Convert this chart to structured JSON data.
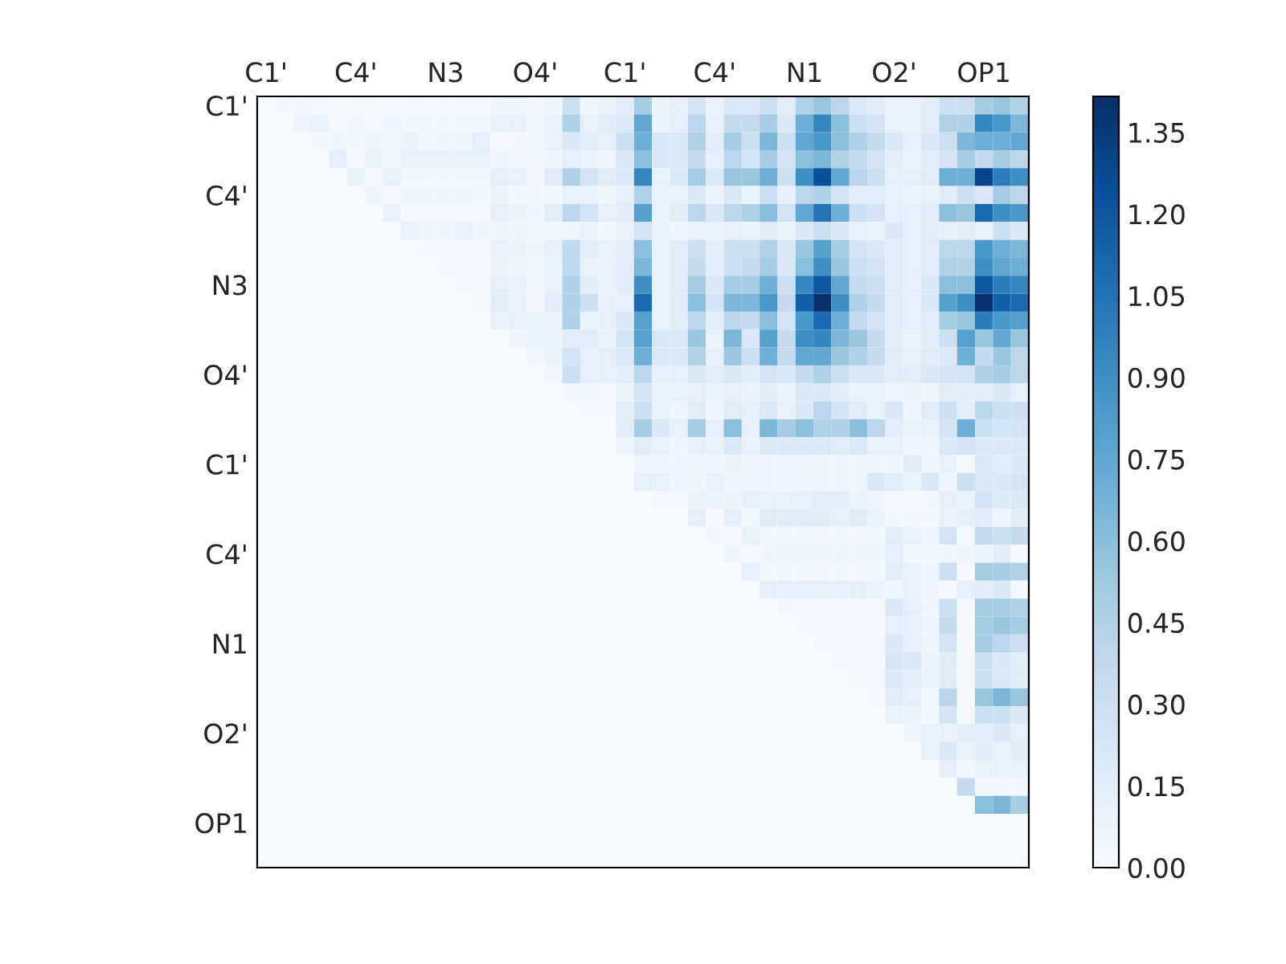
{
  "chart_data": {
    "type": "heatmap",
    "categories": [
      "C1'",
      null,
      null,
      null,
      null,
      "C4'",
      null,
      null,
      null,
      null,
      "N3",
      null,
      null,
      null,
      null,
      "O4'",
      null,
      null,
      null,
      null,
      "C1'",
      null,
      null,
      null,
      null,
      "C4'",
      null,
      null,
      null,
      null,
      "N1",
      null,
      null,
      null,
      null,
      "O2'",
      null,
      null,
      null,
      null,
      "OP1",
      null,
      null
    ],
    "y_categories": [
      "C1'",
      null,
      null,
      null,
      null,
      "C4'",
      null,
      null,
      null,
      null,
      "N3",
      null,
      null,
      null,
      null,
      "O4'",
      null,
      null,
      null,
      null,
      "C1'",
      null,
      null,
      null,
      null,
      "C4'",
      null,
      null,
      null,
      null,
      "N1",
      null,
      null,
      null,
      null,
      "O2'",
      null,
      null,
      null,
      null,
      "OP1",
      null,
      null
    ],
    "cells": [
      [
        0,
        0.03,
        0.03,
        0.02,
        0.02,
        0.02,
        0.02,
        0.02,
        0.02,
        0.02,
        0.02,
        0.02,
        0.02,
        0.05,
        0.05,
        0.03,
        0.05,
        0.3,
        0.05,
        0.08,
        0.15,
        0.5,
        0.08,
        0.12,
        0.25,
        0.1,
        0.2,
        0.2,
        0.3,
        0.15,
        0.45,
        0.55,
        0.4,
        0.2,
        0.15,
        0.1,
        0.1,
        0.15,
        0.3,
        0.3,
        0.5,
        0.55,
        0.45
      ],
      [
        0,
        0,
        0.07,
        0.1,
        0.02,
        0.04,
        0.02,
        0.05,
        0.03,
        0.03,
        0.03,
        0.03,
        0.03,
        0.1,
        0.1,
        0.04,
        0.1,
        0.45,
        0.1,
        0.15,
        0.2,
        0.75,
        0.08,
        0.12,
        0.4,
        0.12,
        0.35,
        0.35,
        0.5,
        0.2,
        0.7,
        0.95,
        0.6,
        0.3,
        0.25,
        0.1,
        0.1,
        0.15,
        0.45,
        0.45,
        0.95,
        0.85,
        0.65
      ],
      [
        0,
        0,
        0,
        0.03,
        0.06,
        0.03,
        0.06,
        0.04,
        0.08,
        0.04,
        0.06,
        0.06,
        0.12,
        0.02,
        0.03,
        0.03,
        0.1,
        0.2,
        0.15,
        0.12,
        0.3,
        0.7,
        0.2,
        0.2,
        0.45,
        0.15,
        0.5,
        0.3,
        0.65,
        0.3,
        0.75,
        0.85,
        0.6,
        0.45,
        0.35,
        0.2,
        0.12,
        0.2,
        0.3,
        0.65,
        0.7,
        0.7,
        0.75
      ],
      [
        0,
        0,
        0,
        0,
        0.12,
        0.02,
        0.08,
        0.03,
        0.1,
        0.1,
        0.1,
        0.1,
        0.1,
        0.05,
        0.04,
        0.04,
        0.05,
        0.12,
        0.08,
        0.07,
        0.2,
        0.6,
        0.2,
        0.2,
        0.35,
        0.12,
        0.4,
        0.25,
        0.5,
        0.25,
        0.6,
        0.65,
        0.45,
        0.35,
        0.25,
        0.15,
        0.08,
        0.15,
        0.25,
        0.5,
        0.35,
        0.5,
        0.4
      ],
      [
        0,
        0,
        0,
        0,
        0,
        0.08,
        0.02,
        0.1,
        0.03,
        0.03,
        0.03,
        0.03,
        0.03,
        0.12,
        0.1,
        0.04,
        0.15,
        0.45,
        0.25,
        0.15,
        0.2,
        0.95,
        0.1,
        0.2,
        0.5,
        0.2,
        0.55,
        0.55,
        0.7,
        0.3,
        0.9,
        1.25,
        0.75,
        0.4,
        0.3,
        0.12,
        0.12,
        0.15,
        0.7,
        0.7,
        1.3,
        1.0,
        0.9
      ],
      [
        0,
        0,
        0,
        0,
        0,
        0,
        0.06,
        0.02,
        0.05,
        0.05,
        0.05,
        0.05,
        0.03,
        0.08,
        0.03,
        0.03,
        0.03,
        0.1,
        0.1,
        0.06,
        0.12,
        0.45,
        0.1,
        0.1,
        0.2,
        0.08,
        0.2,
        0.08,
        0.3,
        0.12,
        0.4,
        0.45,
        0.25,
        0.15,
        0.15,
        0.12,
        0.08,
        0.1,
        0.15,
        0.3,
        0.2,
        0.5,
        0.4
      ],
      [
        0,
        0,
        0,
        0,
        0,
        0,
        0,
        0.1,
        0.02,
        0.02,
        0.02,
        0.02,
        0.02,
        0.12,
        0.08,
        0.05,
        0.15,
        0.4,
        0.25,
        0.12,
        0.15,
        0.8,
        0.1,
        0.15,
        0.4,
        0.2,
        0.4,
        0.45,
        0.6,
        0.25,
        0.75,
        1.05,
        0.7,
        0.3,
        0.25,
        0.12,
        0.12,
        0.15,
        0.6,
        0.55,
        1.1,
        0.9,
        0.85
      ],
      [
        0,
        0,
        0,
        0,
        0,
        0,
        0,
        0,
        0.1,
        0.06,
        0.06,
        0.1,
        0.05,
        0.06,
        0.06,
        0.04,
        0.04,
        0.06,
        0.1,
        0.03,
        0.1,
        0.25,
        0.1,
        0.05,
        0.1,
        0.1,
        0.12,
        0.08,
        0.15,
        0.08,
        0.2,
        0.3,
        0.2,
        0.12,
        0.1,
        0.2,
        0.12,
        0.15,
        0.12,
        0.15,
        0.1,
        0.3,
        0.2
      ],
      [
        0,
        0,
        0,
        0,
        0,
        0,
        0,
        0,
        0,
        0.02,
        0.02,
        0.02,
        0.02,
        0.1,
        0.08,
        0.06,
        0.12,
        0.38,
        0.15,
        0.1,
        0.15,
        0.6,
        0.1,
        0.15,
        0.3,
        0.15,
        0.3,
        0.3,
        0.45,
        0.2,
        0.55,
        0.8,
        0.5,
        0.25,
        0.2,
        0.15,
        0.12,
        0.15,
        0.4,
        0.4,
        0.85,
        0.7,
        0.65
      ],
      [
        0,
        0,
        0,
        0,
        0,
        0,
        0,
        0,
        0,
        0,
        0.02,
        0.02,
        0.02,
        0.08,
        0.06,
        0.04,
        0.08,
        0.38,
        0.08,
        0.1,
        0.15,
        0.65,
        0.1,
        0.15,
        0.35,
        0.15,
        0.3,
        0.35,
        0.5,
        0.2,
        0.6,
        0.9,
        0.55,
        0.3,
        0.25,
        0.15,
        0.12,
        0.15,
        0.45,
        0.45,
        0.9,
        0.75,
        0.7
      ],
      [
        0,
        0,
        0,
        0,
        0,
        0,
        0,
        0,
        0,
        0,
        0,
        0.02,
        0.02,
        0.12,
        0.1,
        0.03,
        0.1,
        0.45,
        0.15,
        0.1,
        0.15,
        0.9,
        0.1,
        0.15,
        0.5,
        0.2,
        0.5,
        0.5,
        0.7,
        0.3,
        0.95,
        1.2,
        0.75,
        0.35,
        0.3,
        0.15,
        0.12,
        0.2,
        0.6,
        0.6,
        1.2,
        1.0,
        0.95
      ],
      [
        0,
        0,
        0,
        0,
        0,
        0,
        0,
        0,
        0,
        0,
        0,
        0,
        0.02,
        0.15,
        0.1,
        0.04,
        0.15,
        0.45,
        0.3,
        0.12,
        0.12,
        1.1,
        0.1,
        0.15,
        0.6,
        0.25,
        0.65,
        0.65,
        0.85,
        0.35,
        1.15,
        1.41,
        0.9,
        0.45,
        0.35,
        0.15,
        0.12,
        0.2,
        0.8,
        0.9,
        1.41,
        1.15,
        1.1
      ],
      [
        0,
        0,
        0,
        0,
        0,
        0,
        0,
        0,
        0,
        0,
        0,
        0,
        0,
        0.1,
        0.1,
        0.08,
        0.08,
        0.45,
        0.08,
        0.12,
        0.2,
        0.8,
        0.1,
        0.15,
        0.4,
        0.15,
        0.4,
        0.35,
        0.6,
        0.25,
        0.85,
        1.1,
        0.7,
        0.35,
        0.25,
        0.15,
        0.12,
        0.15,
        0.5,
        0.55,
        1.0,
        0.85,
        0.8
      ],
      [
        0,
        0,
        0,
        0,
        0,
        0,
        0,
        0,
        0,
        0,
        0,
        0,
        0,
        0,
        0.06,
        0.08,
        0.08,
        0.15,
        0.15,
        0.08,
        0.25,
        0.8,
        0.2,
        0.2,
        0.55,
        0.1,
        0.65,
        0.2,
        0.8,
        0.35,
        0.9,
        0.95,
        0.65,
        0.55,
        0.35,
        0.15,
        0.08,
        0.15,
        0.3,
        0.8,
        0.55,
        0.75,
        0.55
      ],
      [
        0,
        0,
        0,
        0,
        0,
        0,
        0,
        0,
        0,
        0,
        0,
        0,
        0,
        0,
        0,
        0.04,
        0.08,
        0.25,
        0.12,
        0.12,
        0.2,
        0.7,
        0.2,
        0.2,
        0.45,
        0.12,
        0.55,
        0.3,
        0.7,
        0.35,
        0.75,
        0.75,
        0.55,
        0.45,
        0.35,
        0.15,
        0.1,
        0.15,
        0.2,
        0.7,
        0.35,
        0.55,
        0.4
      ],
      [
        0,
        0,
        0,
        0,
        0,
        0,
        0,
        0,
        0,
        0,
        0,
        0,
        0,
        0,
        0,
        0,
        0.04,
        0.3,
        0.12,
        0.12,
        0.15,
        0.4,
        0.12,
        0.12,
        0.2,
        0.15,
        0.2,
        0.15,
        0.25,
        0.2,
        0.35,
        0.45,
        0.3,
        0.2,
        0.2,
        0.15,
        0.15,
        0.2,
        0.25,
        0.25,
        0.45,
        0.5,
        0.4
      ],
      [
        0,
        0,
        0,
        0,
        0,
        0,
        0,
        0,
        0,
        0,
        0,
        0,
        0,
        0,
        0,
        0,
        0,
        0.03,
        0.03,
        0.02,
        0.08,
        0.25,
        0.1,
        0.1,
        0.12,
        0.08,
        0.12,
        0.1,
        0.15,
        0.08,
        0.2,
        0.2,
        0.15,
        0.1,
        0.1,
        0.05,
        0.08,
        0.06,
        0.15,
        0.15,
        0.15,
        0.2,
        0.12
      ],
      [
        0,
        0,
        0,
        0,
        0,
        0,
        0,
        0,
        0,
        0,
        0,
        0,
        0,
        0,
        0,
        0,
        0,
        0,
        0.02,
        0.02,
        0.15,
        0.3,
        0.1,
        0.05,
        0.15,
        0.05,
        0.15,
        0.12,
        0.2,
        0.1,
        0.2,
        0.4,
        0.25,
        0.15,
        0.1,
        0.2,
        0.05,
        0.15,
        0.3,
        0.15,
        0.4,
        0.3,
        0.3
      ],
      [
        0,
        0,
        0,
        0,
        0,
        0,
        0,
        0,
        0,
        0,
        0,
        0,
        0,
        0,
        0,
        0,
        0,
        0,
        0,
        0,
        0.15,
        0.5,
        0.2,
        0.1,
        0.5,
        0.12,
        0.6,
        0.12,
        0.65,
        0.5,
        0.6,
        0.45,
        0.45,
        0.6,
        0.4,
        0.15,
        0.08,
        0.1,
        0.25,
        0.7,
        0.3,
        0.25,
        0.25
      ],
      [
        0,
        0,
        0,
        0,
        0,
        0,
        0,
        0,
        0,
        0,
        0,
        0,
        0,
        0,
        0,
        0,
        0,
        0,
        0,
        0,
        0.05,
        0.15,
        0.1,
        0.05,
        0.12,
        0.1,
        0.2,
        0.1,
        0.2,
        0.2,
        0.2,
        0.2,
        0.15,
        0.2,
        0.1,
        0.1,
        0.05,
        0.05,
        0.2,
        0.25,
        0.2,
        0.2,
        0.2
      ],
      [
        0,
        0,
        0,
        0,
        0,
        0,
        0,
        0,
        0,
        0,
        0,
        0,
        0,
        0,
        0,
        0,
        0,
        0,
        0,
        0,
        0,
        0.05,
        0.05,
        0.05,
        0.05,
        0.05,
        0.08,
        0.05,
        0.05,
        0.05,
        0.05,
        0.05,
        0.05,
        0.05,
        0.05,
        0.05,
        0.15,
        0.05,
        0.1,
        0.02,
        0.2,
        0.15,
        0.2
      ],
      [
        0,
        0,
        0,
        0,
        0,
        0,
        0,
        0,
        0,
        0,
        0,
        0,
        0,
        0,
        0,
        0,
        0,
        0,
        0,
        0,
        0,
        0.12,
        0.1,
        0.05,
        0.05,
        0.1,
        0.05,
        0.05,
        0.05,
        0.05,
        0.05,
        0.05,
        0.05,
        0.05,
        0.2,
        0.15,
        0.08,
        0.2,
        0.05,
        0.3,
        0.2,
        0.2,
        0.25
      ],
      [
        0,
        0,
        0,
        0,
        0,
        0,
        0,
        0,
        0,
        0,
        0,
        0,
        0,
        0,
        0,
        0,
        0,
        0,
        0,
        0,
        0,
        0,
        0.02,
        0.02,
        0.08,
        0.08,
        0.08,
        0.12,
        0.1,
        0.1,
        0.12,
        0.15,
        0.15,
        0.08,
        0.05,
        0.02,
        0.02,
        0.03,
        0.12,
        0.08,
        0.25,
        0.18,
        0.2
      ],
      [
        0,
        0,
        0,
        0,
        0,
        0,
        0,
        0,
        0,
        0,
        0,
        0,
        0,
        0,
        0,
        0,
        0,
        0,
        0,
        0,
        0,
        0,
        0,
        0,
        0.12,
        0.02,
        0.12,
        0.03,
        0.15,
        0.15,
        0.15,
        0.15,
        0.12,
        0.15,
        0.08,
        0.03,
        0.03,
        0.03,
        0.1,
        0.12,
        0.15,
        0.05,
        0.15
      ],
      [
        0,
        0,
        0,
        0,
        0,
        0,
        0,
        0,
        0,
        0,
        0,
        0,
        0,
        0,
        0,
        0,
        0,
        0,
        0,
        0,
        0,
        0,
        0,
        0,
        0,
        0.03,
        0.02,
        0.1,
        0.03,
        0.03,
        0.03,
        0.03,
        0.03,
        0.03,
        0.03,
        0.15,
        0.1,
        0.05,
        0.25,
        0.02,
        0.35,
        0.3,
        0.35
      ],
      [
        0,
        0,
        0,
        0,
        0,
        0,
        0,
        0,
        0,
        0,
        0,
        0,
        0,
        0,
        0,
        0,
        0,
        0,
        0,
        0,
        0,
        0,
        0,
        0,
        0,
        0,
        0.05,
        0.02,
        0.06,
        0.06,
        0.06,
        0.06,
        0.06,
        0.06,
        0.05,
        0.12,
        0.03,
        0.03,
        0.05,
        0.06,
        0.08,
        0.15,
        0.02
      ],
      [
        0,
        0,
        0,
        0,
        0,
        0,
        0,
        0,
        0,
        0,
        0,
        0,
        0,
        0,
        0,
        0,
        0,
        0,
        0,
        0,
        0,
        0,
        0,
        0,
        0,
        0,
        0,
        0.12,
        0.03,
        0.03,
        0.03,
        0.03,
        0.03,
        0.03,
        0.03,
        0.15,
        0.1,
        0.05,
        0.3,
        0.02,
        0.5,
        0.5,
        0.45
      ],
      [
        0,
        0,
        0,
        0,
        0,
        0,
        0,
        0,
        0,
        0,
        0,
        0,
        0,
        0,
        0,
        0,
        0,
        0,
        0,
        0,
        0,
        0,
        0,
        0,
        0,
        0,
        0,
        0,
        0.12,
        0.12,
        0.12,
        0.12,
        0.12,
        0.12,
        0.08,
        0.05,
        0.1,
        0.05,
        0.02,
        0.12,
        0.15,
        0.2,
        0.02
      ],
      [
        0,
        0,
        0,
        0,
        0,
        0,
        0,
        0,
        0,
        0,
        0,
        0,
        0,
        0,
        0,
        0,
        0,
        0,
        0,
        0,
        0,
        0,
        0,
        0,
        0,
        0,
        0,
        0,
        0,
        0.03,
        0.02,
        0.02,
        0.02,
        0.02,
        0.02,
        0.2,
        0.12,
        0.05,
        0.3,
        0.02,
        0.5,
        0.5,
        0.45
      ],
      [
        0,
        0,
        0,
        0,
        0,
        0,
        0,
        0,
        0,
        0,
        0,
        0,
        0,
        0,
        0,
        0,
        0,
        0,
        0,
        0,
        0,
        0,
        0,
        0,
        0,
        0,
        0,
        0,
        0,
        0,
        0.02,
        0.02,
        0.02,
        0.02,
        0.02,
        0.12,
        0.12,
        0.05,
        0.35,
        0.02,
        0.5,
        0.55,
        0.5
      ],
      [
        0,
        0,
        0,
        0,
        0,
        0,
        0,
        0,
        0,
        0,
        0,
        0,
        0,
        0,
        0,
        0,
        0,
        0,
        0,
        0,
        0,
        0,
        0,
        0,
        0,
        0,
        0,
        0,
        0,
        0,
        0,
        0.02,
        0.02,
        0.02,
        0.02,
        0.2,
        0.12,
        0.05,
        0.25,
        0.02,
        0.5,
        0.4,
        0.3
      ],
      [
        0,
        0,
        0,
        0,
        0,
        0,
        0,
        0,
        0,
        0,
        0,
        0,
        0,
        0,
        0,
        0,
        0,
        0,
        0,
        0,
        0,
        0,
        0,
        0,
        0,
        0,
        0,
        0,
        0,
        0,
        0,
        0,
        0.02,
        0.02,
        0.02,
        0.22,
        0.2,
        0.08,
        0.15,
        0.02,
        0.3,
        0.2,
        0.15
      ],
      [
        0,
        0,
        0,
        0,
        0,
        0,
        0,
        0,
        0,
        0,
        0,
        0,
        0,
        0,
        0,
        0,
        0,
        0,
        0,
        0,
        0,
        0,
        0,
        0,
        0,
        0,
        0,
        0,
        0,
        0,
        0,
        0,
        0,
        0.02,
        0.02,
        0.2,
        0.15,
        0.08,
        0.15,
        0.02,
        0.3,
        0.2,
        0.15
      ],
      [
        0,
        0,
        0,
        0,
        0,
        0,
        0,
        0,
        0,
        0,
        0,
        0,
        0,
        0,
        0,
        0,
        0,
        0,
        0,
        0,
        0,
        0,
        0,
        0,
        0,
        0,
        0,
        0,
        0,
        0,
        0,
        0,
        0,
        0,
        0.02,
        0.15,
        0.12,
        0.03,
        0.4,
        0.02,
        0.55,
        0.65,
        0.55
      ],
      [
        0,
        0,
        0,
        0,
        0,
        0,
        0,
        0,
        0,
        0,
        0,
        0,
        0,
        0,
        0,
        0,
        0,
        0,
        0,
        0,
        0,
        0,
        0,
        0,
        0,
        0,
        0,
        0,
        0,
        0,
        0,
        0,
        0,
        0,
        0,
        0.1,
        0.08,
        0.03,
        0.25,
        0.02,
        0.3,
        0.3,
        0.2
      ],
      [
        0,
        0,
        0,
        0,
        0,
        0,
        0,
        0,
        0,
        0,
        0,
        0,
        0,
        0,
        0,
        0,
        0,
        0,
        0,
        0,
        0,
        0,
        0,
        0,
        0,
        0,
        0,
        0,
        0,
        0,
        0,
        0,
        0,
        0,
        0,
        0,
        0.05,
        0.1,
        0.1,
        0.15,
        0.15,
        0.2,
        0.12
      ],
      [
        0,
        0,
        0,
        0,
        0,
        0,
        0,
        0,
        0,
        0,
        0,
        0,
        0,
        0,
        0,
        0,
        0,
        0,
        0,
        0,
        0,
        0,
        0,
        0,
        0,
        0,
        0,
        0,
        0,
        0,
        0,
        0,
        0,
        0,
        0,
        0,
        0,
        0.1,
        0.2,
        0.1,
        0.15,
        0.1,
        0.15
      ],
      [
        0,
        0,
        0,
        0,
        0,
        0,
        0,
        0,
        0,
        0,
        0,
        0,
        0,
        0,
        0,
        0,
        0,
        0,
        0,
        0,
        0,
        0,
        0,
        0,
        0,
        0,
        0,
        0,
        0,
        0,
        0,
        0,
        0,
        0,
        0,
        0,
        0,
        0,
        0.12,
        0.03,
        0.1,
        0.1,
        0.1
      ],
      [
        0,
        0,
        0,
        0,
        0,
        0,
        0,
        0,
        0,
        0,
        0,
        0,
        0,
        0,
        0,
        0,
        0,
        0,
        0,
        0,
        0,
        0,
        0,
        0,
        0,
        0,
        0,
        0,
        0,
        0,
        0,
        0,
        0,
        0,
        0,
        0,
        0,
        0,
        0,
        0.35,
        0.03,
        0.03,
        0.03
      ],
      [
        0,
        0,
        0,
        0,
        0,
        0,
        0,
        0,
        0,
        0,
        0,
        0,
        0,
        0,
        0,
        0,
        0,
        0,
        0,
        0,
        0,
        0,
        0,
        0,
        0,
        0,
        0,
        0,
        0,
        0,
        0,
        0,
        0,
        0,
        0,
        0,
        0,
        0,
        0,
        0,
        0.6,
        0.65,
        0.5
      ],
      [
        0,
        0,
        0,
        0,
        0,
        0,
        0,
        0,
        0,
        0,
        0,
        0,
        0,
        0,
        0,
        0,
        0,
        0,
        0,
        0,
        0,
        0,
        0,
        0,
        0,
        0,
        0,
        0,
        0,
        0,
        0,
        0,
        0,
        0,
        0,
        0,
        0,
        0,
        0,
        0,
        0,
        0,
        0
      ],
      [
        0,
        0,
        0,
        0,
        0,
        0,
        0,
        0,
        0,
        0,
        0,
        0,
        0,
        0,
        0,
        0,
        0,
        0,
        0,
        0,
        0,
        0,
        0,
        0,
        0,
        0,
        0,
        0,
        0,
        0,
        0,
        0,
        0,
        0,
        0,
        0,
        0,
        0,
        0,
        0,
        0,
        0,
        0
      ],
      [
        0,
        0,
        0,
        0,
        0,
        0,
        0,
        0,
        0,
        0,
        0,
        0,
        0,
        0,
        0,
        0,
        0,
        0,
        0,
        0,
        0,
        0,
        0,
        0,
        0,
        0,
        0,
        0,
        0,
        0,
        0,
        0,
        0,
        0,
        0,
        0,
        0,
        0,
        0,
        0,
        0,
        0,
        0
      ]
    ],
    "clim": [
      0,
      1.416
    ],
    "cticks": [
      {
        "value": 0,
        "label": "0.00"
      },
      {
        "value": 0.15,
        "label": "0.15"
      },
      {
        "value": 0.3,
        "label": "0.30"
      },
      {
        "value": 0.45,
        "label": "0.45"
      },
      {
        "value": 0.6,
        "label": "0.60"
      },
      {
        "value": 0.75,
        "label": "0.75"
      },
      {
        "value": 0.9,
        "label": "0.90"
      },
      {
        "value": 1.05,
        "label": "1.05"
      },
      {
        "value": 1.2,
        "label": "1.20"
      },
      {
        "value": 1.35,
        "label": "1.35"
      }
    ]
  }
}
